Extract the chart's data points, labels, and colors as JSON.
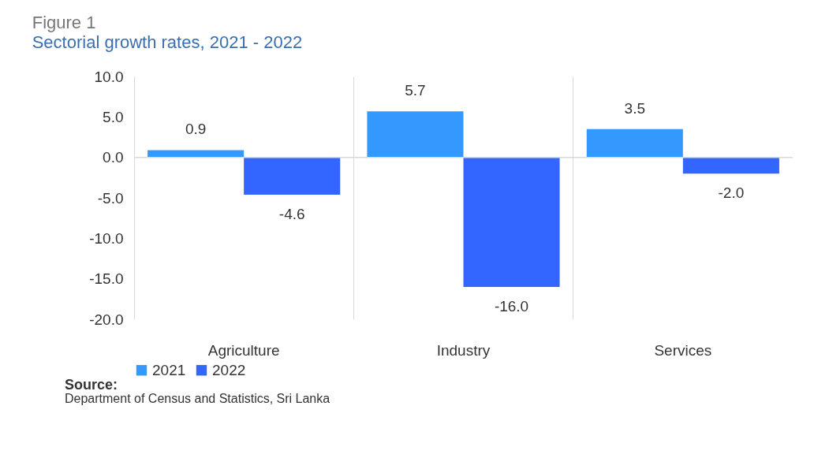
{
  "chart_data": {
    "type": "bar",
    "title": "Figure 1",
    "subtitle": "Sectorial growth rates, 2021 - 2022",
    "categories": [
      "Agriculture",
      "Industry",
      "Services"
    ],
    "series": [
      {
        "name": "2021",
        "color": "#3399ff",
        "values": [
          0.9,
          5.7,
          3.5
        ],
        "value_labels": [
          "0.9",
          "5.7",
          "3.5"
        ]
      },
      {
        "name": "2022",
        "color": "#3366ff",
        "values": [
          -4.6,
          -16.0,
          -2.0
        ],
        "value_labels": [
          "-4.6",
          "-16.0",
          "-2.0"
        ]
      }
    ],
    "ylim": [
      -20,
      10
    ],
    "yticks": [
      {
        "value": -20,
        "label": "-20.0"
      },
      {
        "value": -15,
        "label": "-15.0"
      },
      {
        "value": -10,
        "label": "-10.0"
      },
      {
        "value": -5,
        "label": "-5.0"
      },
      {
        "value": 0,
        "label": "0.0"
      },
      {
        "value": 5,
        "label": "5.0"
      },
      {
        "value": 10,
        "label": "10.0"
      }
    ],
    "grid": "x",
    "legend": "bottom",
    "annotations": [
      "Source:",
      "Department of Census and Statistics, Sri Lanka"
    ]
  }
}
